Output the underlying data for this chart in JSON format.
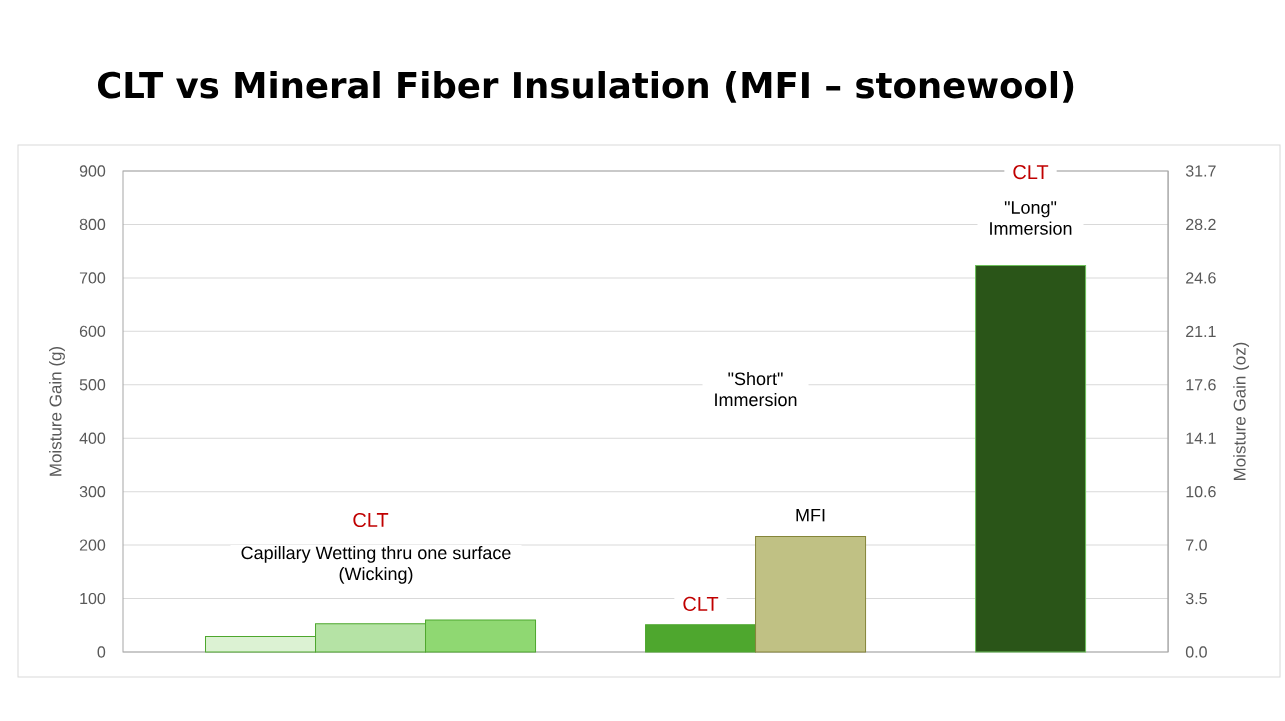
{
  "chart_data": {
    "type": "bar",
    "title": "CLT vs Mineral Fiber Insulation (MFI – stonewool)",
    "ylabel": "Moisture Gain (g)",
    "y2label": "Moisture Gain (oz)",
    "categories": [
      null
    ],
    "series": [
      {
        "color": "#dcf2d3",
        "values": [
          29
        ]
      },
      {
        "color": "#b5e3a5",
        "values": [
          53
        ]
      },
      {
        "color": "#8fd872",
        "values": [
          60
        ]
      },
      {
        "values": [
          null
        ]
      },
      {
        "color": "#4ea72e",
        "values": [
          51
        ]
      },
      {
        "color": "#c0c184",
        "values": [
          216
        ]
      },
      {
        "values": [
          null
        ]
      },
      {
        "color": "#2a5518",
        "values": [
          723
        ]
      }
    ],
    "ylim": [
      0,
      900
    ],
    "yticks": [
      0,
      100,
      200,
      300,
      400,
      500,
      600,
      700,
      800,
      900
    ],
    "y2lim": [
      0,
      31.68
    ],
    "y2ticks": [
      {
        "value": 0,
        "label": "0.0"
      },
      {
        "value": 3.52,
        "label": "3.5"
      },
      {
        "value": 7.04,
        "label": "7.0"
      },
      {
        "value": 10.56,
        "label": "10.6"
      },
      {
        "value": 14.08,
        "label": "14.1"
      },
      {
        "value": 17.6,
        "label": "17.6"
      },
      {
        "value": 21.12,
        "label": "21.1"
      },
      {
        "value": 24.64,
        "label": "24.6"
      },
      {
        "value": 28.16,
        "label": "28.2"
      },
      {
        "value": 31.68,
        "label": "31.7"
      }
    ],
    "grid": "y",
    "annotations": [
      "CLT",
      "Capillary Wetting thru one surface (Wicking)",
      "CLT",
      "MFI",
      "\"Short\" Immersion",
      "CLT",
      "\"Long\" Immersion"
    ]
  }
}
